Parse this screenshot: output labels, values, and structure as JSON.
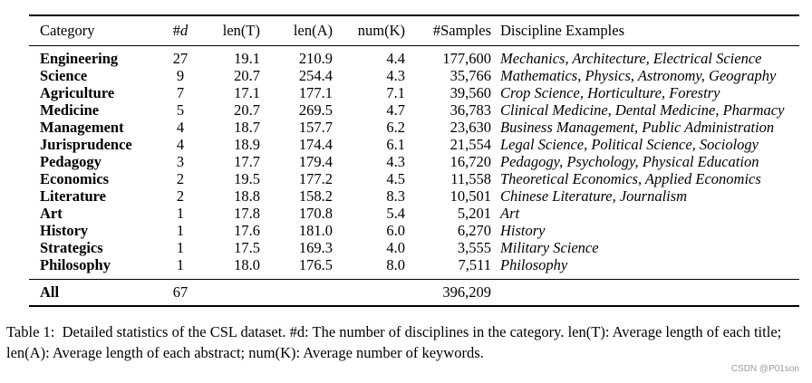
{
  "table": {
    "headers": {
      "category": "Category",
      "d_prefix": "#",
      "d_var": "d",
      "len_t": "len(T)",
      "len_a": "len(A)",
      "num_k": "num(K)",
      "samples": "#Samples",
      "examples": "Discipline Examples"
    },
    "rows": [
      {
        "category": "Engineering",
        "d": "27",
        "len_t": "19.1",
        "len_a": "210.9",
        "num_k": "4.4",
        "samples": "177,600",
        "examples": "Mechanics, Architecture, Electrical Science"
      },
      {
        "category": "Science",
        "d": "9",
        "len_t": "20.7",
        "len_a": "254.4",
        "num_k": "4.3",
        "samples": "35,766",
        "examples": "Mathematics, Physics, Astronomy, Geography"
      },
      {
        "category": "Agriculture",
        "d": "7",
        "len_t": "17.1",
        "len_a": "177.1",
        "num_k": "7.1",
        "samples": "39,560",
        "examples": "Crop Science, Horticulture, Forestry"
      },
      {
        "category": "Medicine",
        "d": "5",
        "len_t": "20.7",
        "len_a": "269.5",
        "num_k": "4.7",
        "samples": "36,783",
        "examples": "Clinical Medicine, Dental Medicine, Pharmacy"
      },
      {
        "category": "Management",
        "d": "4",
        "len_t": "18.7",
        "len_a": "157.7",
        "num_k": "6.2",
        "samples": "23,630",
        "examples": "Business Management, Public Administration"
      },
      {
        "category": "Jurisprudence",
        "d": "4",
        "len_t": "18.9",
        "len_a": "174.4",
        "num_k": "6.1",
        "samples": "21,554",
        "examples": "Legal Science, Political Science, Sociology"
      },
      {
        "category": "Pedagogy",
        "d": "3",
        "len_t": "17.7",
        "len_a": "179.4",
        "num_k": "4.3",
        "samples": "16,720",
        "examples": "Pedagogy, Psychology, Physical Education"
      },
      {
        "category": "Economics",
        "d": "2",
        "len_t": "19.5",
        "len_a": "177.2",
        "num_k": "4.5",
        "samples": "11,558",
        "examples": "Theoretical Economics, Applied Economics"
      },
      {
        "category": "Literature",
        "d": "2",
        "len_t": "18.8",
        "len_a": "158.2",
        "num_k": "8.3",
        "samples": "10,501",
        "examples": "Chinese Literature, Journalism"
      },
      {
        "category": "Art",
        "d": "1",
        "len_t": "17.8",
        "len_a": "170.8",
        "num_k": "5.4",
        "samples": "5,201",
        "examples": "Art"
      },
      {
        "category": "History",
        "d": "1",
        "len_t": "17.6",
        "len_a": "181.0",
        "num_k": "6.0",
        "samples": "6,270",
        "examples": "History"
      },
      {
        "category": "Strategics",
        "d": "1",
        "len_t": "17.5",
        "len_a": "169.3",
        "num_k": "4.0",
        "samples": "3,555",
        "examples": "Military Science"
      },
      {
        "category": "Philosophy",
        "d": "1",
        "len_t": "18.0",
        "len_a": "176.5",
        "num_k": "8.0",
        "samples": "7,511",
        "examples": "Philosophy"
      }
    ],
    "total": {
      "category": "All",
      "d": "67",
      "samples": "396,209"
    }
  },
  "caption": {
    "label": "Table 1:",
    "text": "Detailed statistics of the CSL dataset. #d: The number of disciplines in the category. len(T): Average length of each title; len(A): Average length of each abstract; num(K): Average number of keywords."
  },
  "watermark": "CSDN @P01son"
}
